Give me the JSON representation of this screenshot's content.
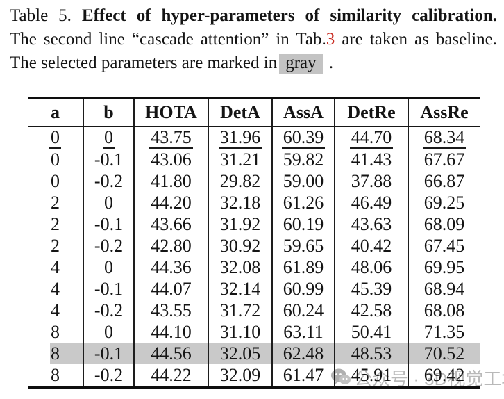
{
  "caption": {
    "label": "Table 5.",
    "title_bold": "Effect of hyper-parameters of similarity calibration.",
    "line2_pre": "The second line “cascade attention” in Tab.",
    "line2_ref": "3",
    "line2_post": " are taken as baseline.",
    "line3_pre": "The selected parameters are marked in",
    "line3_highlight": "gray",
    "line3_post": "."
  },
  "table": {
    "columns": [
      "a",
      "b",
      "HOTA",
      "DetA",
      "AssA",
      "DetRe",
      "AssRe"
    ],
    "rows": [
      {
        "cells": [
          "0",
          "0",
          "43.75",
          "31.96",
          "60.39",
          "44.70",
          "68.34"
        ],
        "underline": true,
        "highlight": false
      },
      {
        "cells": [
          "0",
          "-0.1",
          "43.06",
          "31.21",
          "59.82",
          "41.43",
          "67.67"
        ],
        "underline": false,
        "highlight": false
      },
      {
        "cells": [
          "0",
          "-0.2",
          "41.80",
          "29.82",
          "59.00",
          "37.88",
          "66.87"
        ],
        "underline": false,
        "highlight": false
      },
      {
        "cells": [
          "2",
          "0",
          "44.20",
          "32.18",
          "61.26",
          "46.49",
          "69.25"
        ],
        "underline": false,
        "highlight": false
      },
      {
        "cells": [
          "2",
          "-0.1",
          "43.66",
          "31.92",
          "60.19",
          "43.63",
          "68.09"
        ],
        "underline": false,
        "highlight": false
      },
      {
        "cells": [
          "2",
          "-0.2",
          "42.80",
          "30.92",
          "59.65",
          "40.42",
          "67.45"
        ],
        "underline": false,
        "highlight": false
      },
      {
        "cells": [
          "4",
          "0",
          "44.36",
          "32.08",
          "61.89",
          "48.06",
          "69.95"
        ],
        "underline": false,
        "highlight": false
      },
      {
        "cells": [
          "4",
          "-0.1",
          "44.07",
          "32.14",
          "60.99",
          "45.39",
          "68.94"
        ],
        "underline": false,
        "highlight": false
      },
      {
        "cells": [
          "4",
          "-0.2",
          "43.55",
          "31.72",
          "60.24",
          "42.58",
          "68.08"
        ],
        "underline": false,
        "highlight": false
      },
      {
        "cells": [
          "8",
          "0",
          "44.10",
          "31.10",
          "63.11",
          "50.41",
          "71.35"
        ],
        "underline": false,
        "highlight": false
      },
      {
        "cells": [
          "8",
          "-0.1",
          "44.56",
          "32.05",
          "62.48",
          "48.53",
          "70.52"
        ],
        "underline": false,
        "highlight": true
      },
      {
        "cells": [
          "8",
          "-0.2",
          "44.22",
          "32.09",
          "61.47",
          "45.91",
          "69.42"
        ],
        "underline": false,
        "highlight": false
      }
    ]
  },
  "watermark": {
    "icon": "wechat-icon",
    "text": "公众号 · 3D视觉工坊"
  },
  "colors": {
    "ref_red": "#c8291f",
    "highlight_gray": "#c9c9c9",
    "chip_gray": "#c3c3c3",
    "watermark_gray": "#b9b9b9",
    "text": "#141414"
  }
}
